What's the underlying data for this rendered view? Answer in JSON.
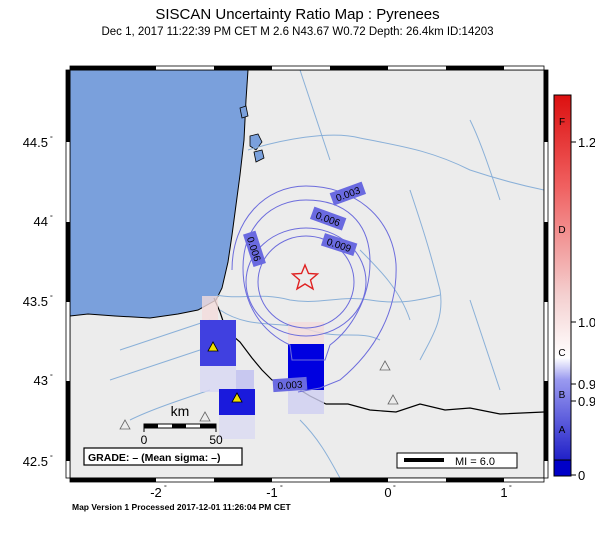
{
  "title": "SISCAN Uncertainty Ratio Map : Pyrenees",
  "subtitle": "Dec  1, 2017 11:22:39 PM CET    M 2.6    N43.67 W0.72    Depth: 26.4km    ID:14203",
  "footer": "Map Version 1 Processed 2017-12-01 11:26:04 PM CET",
  "y_ticks": [
    "44.5",
    "44",
    "43.5",
    "43",
    "42.5"
  ],
  "x_ticks": [
    "-2",
    "-1",
    "0",
    "1"
  ],
  "contours": [
    "0.003",
    "0.006",
    "0.009",
    "0.006",
    "0.003"
  ],
  "scale_bar": {
    "unit": "km",
    "left": "0",
    "right": "50"
  },
  "grade": "GRADE: – (Mean sigma: –)",
  "mi_legend": "MI = 6.0",
  "colorbar": {
    "letters": [
      "F",
      "D",
      "C",
      "B",
      "A"
    ],
    "values": [
      "1.2",
      "1.0",
      "0.9",
      "0.9",
      "0"
    ]
  },
  "epicenter": {
    "lat": 43.67,
    "lon": -0.72
  },
  "colors": {
    "sea": "#7aa0dc",
    "land": "#ececec",
    "contour": "#6c6cdc",
    "star": "#e02020",
    "river": "#8ab0d8"
  }
}
